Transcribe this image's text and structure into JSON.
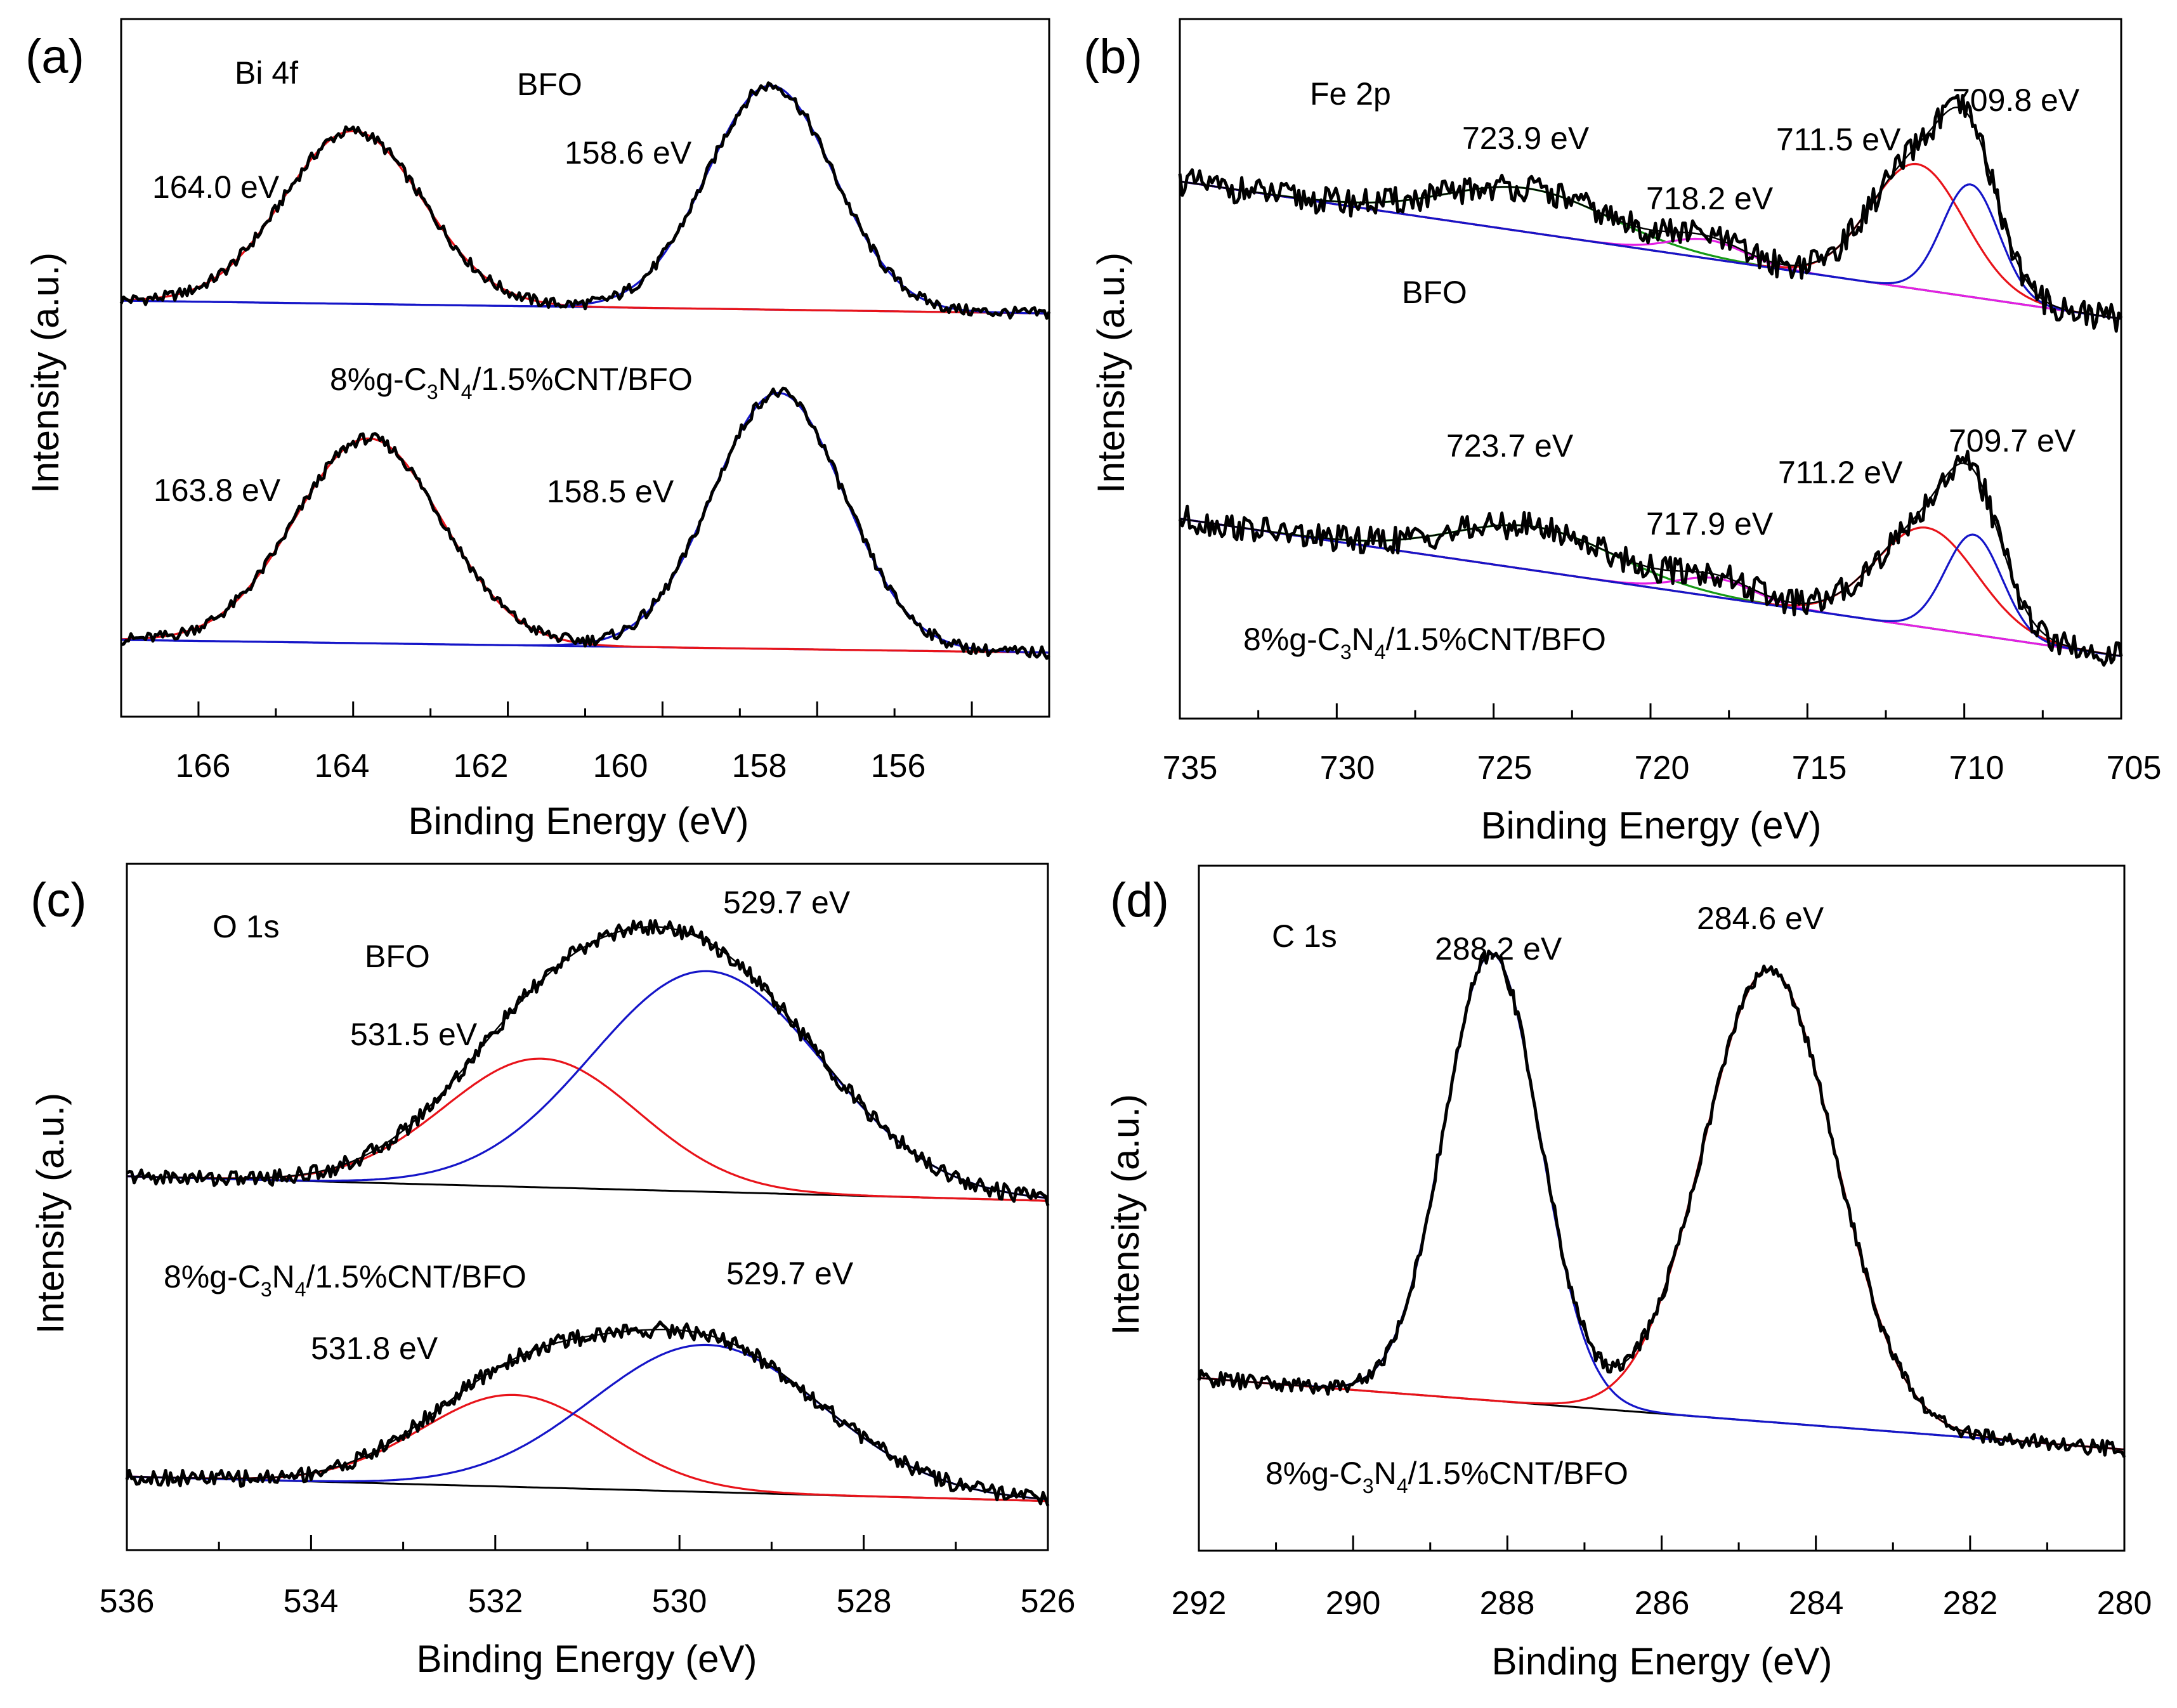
{
  "colors": {
    "black": "#000000",
    "red": "#e8131a",
    "blue": "#1515c8",
    "green": "#159a15",
    "magenta": "#e41ee4"
  },
  "chart_data": [
    {
      "panel": "(a)",
      "type": "line",
      "title": "Bi 4f",
      "xlabel": "Binding Energy (eV)",
      "ylabel": "Intensity (a.u.)",
      "xlim": [
        167,
        155
      ],
      "xticks": [
        166,
        164,
        162,
        160,
        158,
        156
      ],
      "tick_labels": [
        "166",
        "164",
        "162",
        "160",
        "158",
        "156"
      ],
      "ylim": [
        -5,
        104
      ],
      "series": [
        {
          "name": "BFO",
          "label": "BFO",
          "offset": 58,
          "baseline": [
            [
              167,
              2
            ],
            [
              155,
              0
            ]
          ],
          "peaks": [
            {
              "center": 164.0,
              "height": 27,
              "width": 0.9,
              "color": "red",
              "label": "164.0 eV"
            },
            {
              "center": 158.6,
              "height": 35,
              "width": 0.82,
              "color": "blue",
              "label": "158.6 eV"
            }
          ]
        },
        {
          "name": "8%g-C3N4/1.5%CNT/BFO",
          "label_main": "8%g-C",
          "label_sub1": "3",
          "label_mid": "N",
          "label_sub2": "4",
          "label_end": "/1.5%CNT/BFO",
          "offset": 5,
          "baseline": [
            [
              167,
              2
            ],
            [
              155,
              0
            ]
          ],
          "peaks": [
            {
              "center": 163.8,
              "height": 32,
              "width": 0.95,
              "color": "red",
              "label": "163.8 eV"
            },
            {
              "center": 158.5,
              "height": 40,
              "width": 0.85,
              "color": "blue",
              "label": "158.5 eV"
            }
          ]
        }
      ]
    },
    {
      "panel": "(b)",
      "type": "line",
      "title": "Fe 2p",
      "xlabel": "Binding Energy (eV)",
      "ylabel": "Intensity (a.u.)",
      "xlim": [
        735,
        705
      ],
      "xticks": [
        735,
        730,
        725,
        720,
        715,
        710,
        705
      ],
      "tick_labels": [
        "735",
        "730",
        "725",
        "720",
        "715",
        "710",
        "705"
      ],
      "ylim": [
        -5,
        107
      ],
      "series": [
        {
          "name": "BFO",
          "label": "BFO",
          "offset": 59,
          "baseline": [
            [
              735,
              22
            ],
            [
              705,
              0
            ]
          ],
          "peaks": [
            {
              "center": 723.9,
              "height": 7,
              "width": 2.6,
              "color": "green",
              "label": "723.9 eV"
            },
            {
              "center": 718.2,
              "height": 3,
              "width": 1.2,
              "color": "magenta",
              "label": "718.2 eV"
            },
            {
              "center": 711.5,
              "height": 20,
              "width": 1.5,
              "color": "red",
              "label": "711.5 eV"
            },
            {
              "center": 709.8,
              "height": 18,
              "width": 0.9,
              "color": "blue",
              "label": "709.8 eV"
            }
          ]
        },
        {
          "name": "8%g-C3N4/1.5%CNT/BFO",
          "label_main": "8%g-C",
          "label_sub1": "3",
          "label_mid": "N",
          "label_sub2": "4",
          "label_end": "/1.5%CNT/BFO",
          "offset": 5,
          "baseline": [
            [
              735,
              22
            ],
            [
              705,
              0
            ]
          ],
          "peaks": [
            {
              "center": 723.7,
              "height": 7,
              "width": 2.6,
              "color": "green",
              "label": "723.7 eV"
            },
            {
              "center": 717.9,
              "height": 3,
              "width": 1.2,
              "color": "magenta",
              "label": "717.9 eV"
            },
            {
              "center": 711.2,
              "height": 16,
              "width": 1.6,
              "color": "red",
              "label": "711.2 eV"
            },
            {
              "center": 709.7,
              "height": 16,
              "width": 0.9,
              "color": "blue",
              "label": "709.7 eV"
            }
          ]
        }
      ]
    },
    {
      "panel": "(c)",
      "type": "line",
      "title": "O 1s",
      "xlabel": "Binding Energy (eV)",
      "ylabel": "Intensity (a.u.)",
      "xlim": [
        536,
        526
      ],
      "xticks": [
        536,
        534,
        532,
        530,
        528,
        526
      ],
      "tick_labels": [
        "536",
        "534",
        "532",
        "530",
        "528",
        "526"
      ],
      "ylim": [
        -4,
        108
      ],
      "series": [
        {
          "name": "BFO",
          "label": "BFO",
          "offset": 53,
          "baseline": [
            [
              536,
              4
            ],
            [
              526,
              0
            ]
          ],
          "peaks": [
            {
              "center": 531.5,
              "height": 21,
              "width": 1.05,
              "color": "red",
              "label": "531.5 eV"
            },
            {
              "center": 529.7,
              "height": 36,
              "width": 1.25,
              "color": "blue",
              "label": "529.7 eV"
            }
          ]
        },
        {
          "name": "8%g-C3N4/1.5%CNT/BFO",
          "label_main": "8%g-C",
          "label_sub1": "3",
          "label_mid": "N",
          "label_sub2": "4",
          "label_end": "/1.5%CNT/BFO",
          "offset": 4,
          "baseline": [
            [
              536,
              4
            ],
            [
              526,
              0
            ]
          ],
          "peaks": [
            {
              "center": 531.8,
              "height": 15,
              "width": 1.0,
              "color": "red",
              "label": "531.8 eV"
            },
            {
              "center": 529.7,
              "height": 24,
              "width": 1.25,
              "color": "blue",
              "label": "529.7 eV"
            }
          ]
        }
      ]
    },
    {
      "panel": "(d)",
      "type": "line",
      "title": "C 1s",
      "xlabel": "Binding Energy (eV)",
      "ylabel": "Intensity (a.u.)",
      "xlim": [
        292,
        280
      ],
      "xticks": [
        292,
        290,
        288,
        286,
        284,
        282,
        280
      ],
      "tick_labels": [
        "292",
        "290",
        "288",
        "286",
        "284",
        "282",
        "280"
      ],
      "ylim": [
        -5,
        110
      ],
      "series": [
        {
          "name": "8%g-C3N4/1.5%CNT/BFO",
          "label_main": "8%g-C",
          "label_sub1": "3",
          "label_mid": "N",
          "label_sub2": "4",
          "label_end": "/1.5%CNT/BFO",
          "offset": 0,
          "baseline": [
            [
              292,
              24
            ],
            [
              280,
              12
            ]
          ],
          "peaks": [
            {
              "center": 288.2,
              "height": 75,
              "width": 0.62,
              "color": "blue",
              "label": "288.2 eV"
            },
            {
              "center": 284.6,
              "height": 76,
              "width": 0.85,
              "color": "red",
              "label": "284.6 eV"
            }
          ]
        }
      ]
    }
  ]
}
